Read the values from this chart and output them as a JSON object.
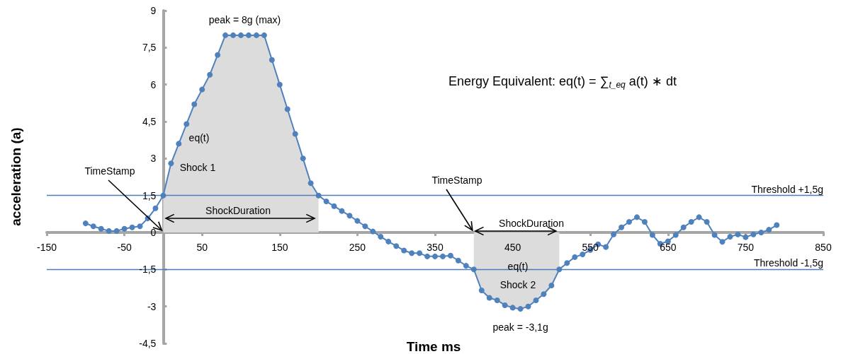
{
  "chart_data": {
    "type": "line",
    "xlabel": "Time ms",
    "ylabel": "acceleration (a)",
    "x": [
      -100,
      -90,
      -80,
      -70,
      -60,
      -50,
      -40,
      -30,
      -20,
      -10,
      0,
      10,
      20,
      30,
      40,
      50,
      60,
      70,
      80,
      90,
      100,
      110,
      120,
      130,
      140,
      150,
      160,
      170,
      180,
      190,
      200,
      210,
      220,
      230,
      240,
      250,
      260,
      270,
      280,
      290,
      300,
      310,
      320,
      330,
      340,
      350,
      360,
      370,
      380,
      390,
      400,
      410,
      420,
      430,
      440,
      450,
      460,
      470,
      480,
      490,
      500,
      510,
      520,
      530,
      540,
      550,
      560,
      570,
      580,
      590,
      600,
      610,
      620,
      630,
      640,
      650,
      660,
      670,
      680,
      690,
      700,
      710,
      720,
      730,
      740,
      750,
      760,
      770,
      780,
      790
    ],
    "series": [
      {
        "type": "area",
        "marker": "none",
        "color": "#dcdcdc",
        "x": [
          0,
          10,
          20,
          30,
          40,
          50,
          60,
          70,
          80,
          90,
          100,
          110,
          120,
          130,
          140,
          150,
          160,
          170,
          180,
          190,
          200
        ],
        "values": [
          1.5,
          2.8,
          3.6,
          4.4,
          5.2,
          5.8,
          6.4,
          7.2,
          8,
          8,
          8,
          8,
          8,
          8,
          7,
          6,
          5,
          4,
          3,
          2,
          1.5
        ]
      },
      {
        "type": "area",
        "marker": "none",
        "color": "#dcdcdc",
        "x": [
          400,
          410,
          420,
          430,
          440,
          450,
          460,
          470,
          480,
          490,
          500,
          510
        ],
        "values": [
          -1.5,
          -2.35,
          -2.65,
          -2.75,
          -2.95,
          -3.05,
          -3.1,
          -3.0,
          -2.75,
          -2.5,
          -2.15,
          -1.5
        ]
      },
      {
        "color": "#4f81bd",
        "values": [
          0.37,
          0.25,
          0.15,
          0.06,
          0.06,
          0.15,
          0.21,
          0.25,
          0.57,
          0.98,
          1.5,
          2.8,
          3.6,
          4.4,
          5.2,
          5.8,
          6.4,
          7.2,
          8,
          8,
          8,
          8,
          8,
          8,
          7,
          6,
          5,
          4,
          3,
          2,
          1.5,
          1.26,
          1.07,
          0.87,
          0.68,
          0.47,
          0.25,
          0.04,
          -0.17,
          -0.37,
          -0.55,
          -0.73,
          -0.84,
          -0.84,
          -0.97,
          -0.97,
          -0.97,
          -0.94,
          -1.14,
          -1.35,
          -1.5,
          -2.35,
          -2.65,
          -2.75,
          -2.95,
          -3.05,
          -3.1,
          -3.0,
          -2.75,
          -2.5,
          -2.15,
          -1.5,
          -1.24,
          -1.0,
          -0.89,
          -0.71,
          -0.48,
          -0.59,
          -0.08,
          0.21,
          0.43,
          0.62,
          0.43,
          -0.1,
          -0.46,
          -0.36,
          -0.1,
          0.21,
          0.43,
          0.62,
          0.43,
          -0.1,
          -0.38,
          -0.17,
          -0.08,
          -0.19,
          -0.08,
          0,
          0.11,
          0.3
        ]
      }
    ],
    "xlim": [
      -150,
      850
    ],
    "xticks": [
      -150,
      -50,
      50,
      150,
      250,
      350,
      450,
      550,
      650,
      750,
      850
    ],
    "ylim": [
      -4.5,
      9
    ],
    "yticks": [
      {
        "value": -4.5,
        "label": "-4,5"
      },
      -3,
      {
        "value": -1.5,
        "label": "-1,5"
      },
      0,
      {
        "value": 1.5,
        "label": "1,5"
      },
      3,
      {
        "value": 4.5,
        "label": "4,5"
      },
      6,
      {
        "value": 7.5,
        "label": "7,5"
      },
      9
    ],
    "ref_lines": [
      {
        "axis": "y",
        "value": 1.5,
        "label": "Threshold +1,5g",
        "color": "#4a7ebb"
      },
      {
        "axis": "y",
        "value": -1.5,
        "label": "Threshold -1,5g",
        "color": "#4a7ebb"
      }
    ],
    "annotations": [
      "Energy Equivalent: eq(t) = ∑$_{t_eq}$ a(t) ∗ dt",
      {
        "text": "peak = 8g (max)",
        "x": 105,
        "y": 8
      },
      "eq(t)",
      "Shock 1",
      {
        "text": "TimeStamp",
        "x": 0,
        "y": 0
      },
      "ShockDuration",
      {
        "text": "TimeStamp",
        "x": 400,
        "y": 0
      },
      {
        "text": "ShockDuration",
        "x": 400,
        "y": 0
      },
      "eq(t)",
      "Shock 2",
      {
        "text": "peak = -3,1g",
        "x": 460,
        "y": -3.1
      }
    ],
    "grid": false,
    "marker": "circle",
    "line_style": "solid"
  }
}
